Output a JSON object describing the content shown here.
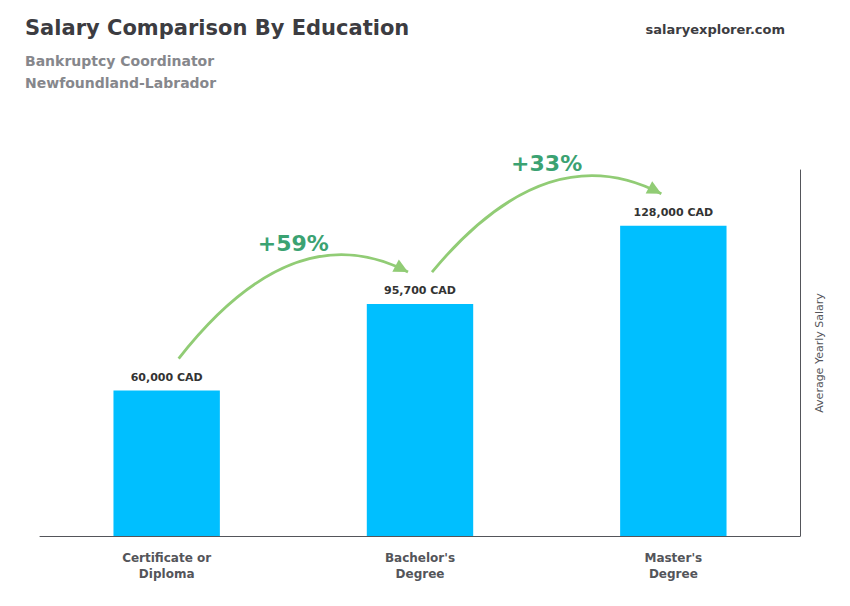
{
  "chart_data": {
    "type": "bar",
    "title": "Salary Comparison By Education",
    "subtitle": [
      "Bankruptcy Coordinator",
      "Newfoundland-Labrador"
    ],
    "watermark": "salaryexplorer.com",
    "ylabel": "Average Yearly Salary",
    "categories": [
      "Certificate or\nDiploma",
      "Bachelor's\nDegree",
      "Master's\nDegree"
    ],
    "values": [
      60000,
      95700,
      128000
    ],
    "value_labels": [
      "60,000 CAD",
      "95,700 CAD",
      "128,000 CAD"
    ],
    "data_labels": true,
    "annotations": [
      "+59%",
      "+33%"
    ],
    "color": "#00BFFF",
    "ylim": [
      0,
      151040
    ],
    "grid": false,
    "tick_labels": "x"
  }
}
